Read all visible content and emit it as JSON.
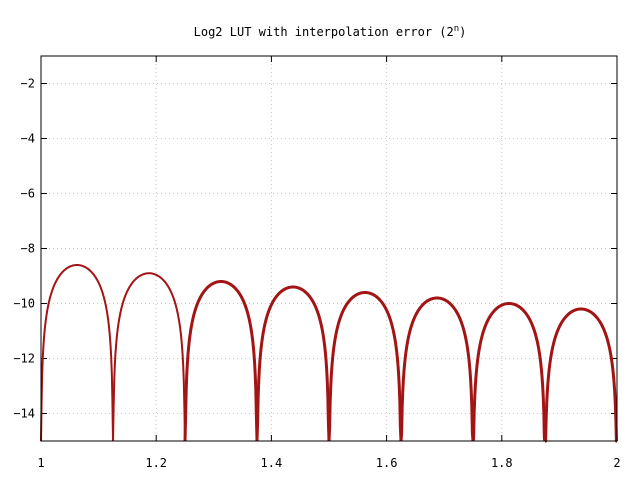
{
  "chart_data": {
    "type": "line",
    "title": "Log2 LUT with interpolation error (2",
    "title_superscript": "n",
    "title_close": ")",
    "xlabel": "",
    "ylabel": "",
    "xlim": [
      1,
      2
    ],
    "ylim": [
      -15,
      -1
    ],
    "x_ticks": [
      1,
      1.2,
      1.4,
      1.6,
      1.8,
      2
    ],
    "x_tick_labels": [
      "1",
      "1.2",
      "1.4",
      "1.6",
      "1.8",
      "2"
    ],
    "y_ticks": [
      -2,
      -4,
      -6,
      -8,
      -10,
      -12,
      -14
    ],
    "y_tick_labels": [
      "-2",
      "-4",
      "-6",
      "-8",
      "-10",
      "-12",
      "-14"
    ],
    "grid": true,
    "legend": "none",
    "series": [
      {
        "name": "interpolation error",
        "color": "#a31515",
        "segment_breaks": [
          1,
          1.125,
          1.25,
          1.375,
          1.5,
          1.625,
          1.75,
          1.875,
          2
        ],
        "segment_peaks": [
          -8.6,
          -8.9,
          -9.2,
          -9.4,
          -9.6,
          -9.8,
          -10.0,
          -10.2
        ]
      }
    ]
  }
}
